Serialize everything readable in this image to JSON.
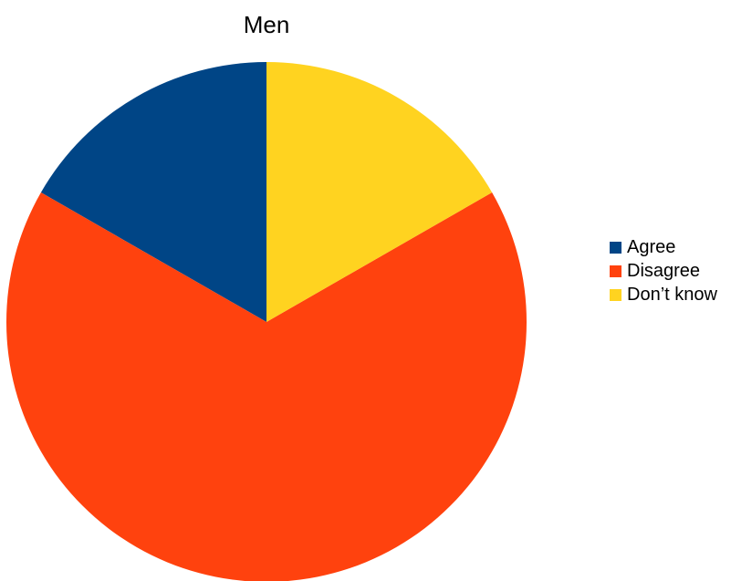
{
  "chart_data": {
    "type": "pie",
    "title": "Men",
    "categories": [
      "Agree",
      "Disagree",
      "Don’t know"
    ],
    "values": [
      16.7,
      66.6,
      16.7
    ],
    "colors": [
      "#004586",
      "#ff420e",
      "#ffd320"
    ],
    "legend_position": "right"
  }
}
